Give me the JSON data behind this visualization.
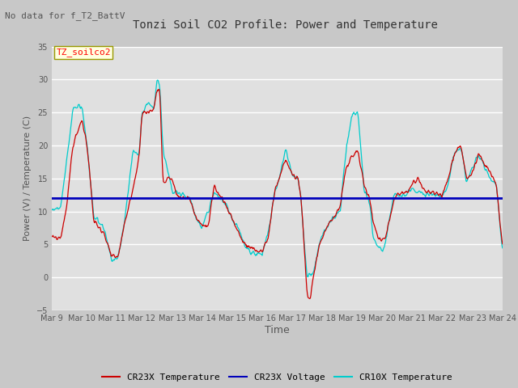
{
  "title": "Tonzi Soil CO2 Profile: Power and Temperature",
  "subtitle": "No data for f_T2_BattV",
  "ylabel": "Power (V) / Temperature (C)",
  "xlabel": "Time",
  "ylim": [
    -5,
    35
  ],
  "yticks": [
    -5,
    0,
    5,
    10,
    15,
    20,
    25,
    30,
    35
  ],
  "legend_label": "TZ_soilco2",
  "fig_facecolor": "#c8c8c8",
  "plot_facecolor": "#e0e0e0",
  "cr23x_temp_color": "#cc0000",
  "cr23x_volt_color": "#0000bb",
  "cr10x_temp_color": "#00cccc",
  "voltage_level": 12.0,
  "xtick_labels": [
    "Mar 9",
    "Mar 10",
    "Mar 11",
    "Mar 12",
    "Mar 13",
    "Mar 14",
    "Mar 15",
    "Mar 16",
    "Mar 17",
    "Mar 18",
    "Mar 19",
    "Mar 20",
    "Mar 21",
    "Mar 22",
    "Mar 23",
    "Mar 24"
  ],
  "title_fontsize": 10,
  "subtitle_fontsize": 8,
  "axis_fontsize": 8,
  "tick_fontsize": 7,
  "legend_fontsize": 8
}
